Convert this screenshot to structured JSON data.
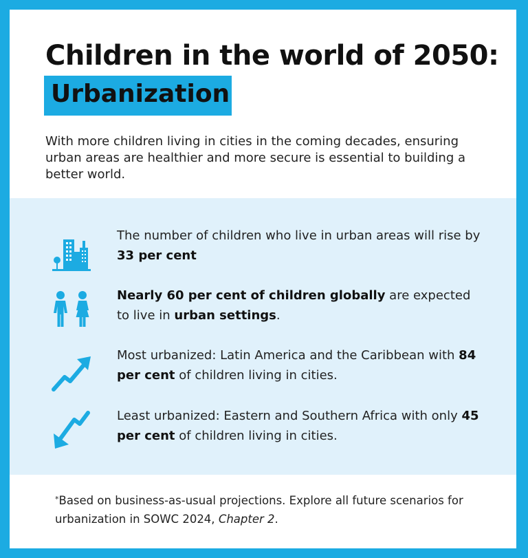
{
  "title": "Children in the world of 2050:",
  "subtitle": "Urbanization",
  "intro": "With more children living in cities in the coming decades, ensuring urban areas are healthier and more secure is essential to building a better world.",
  "colors": {
    "accent": "#1CABE2",
    "panel": "#E0F1FB",
    "text": "#111111"
  },
  "stats": [
    {
      "icon": "city-buildings-icon",
      "parts": [
        {
          "text": "The number of children who live in urban areas will rise by ",
          "bold": false
        },
        {
          "text": "33 per cent",
          "bold": true
        }
      ]
    },
    {
      "icon": "children-icon",
      "parts": [
        {
          "text": "Nearly 60 per cent of children globally",
          "bold": true
        },
        {
          "text": " are expected to live in ",
          "bold": false
        },
        {
          "text": "urban settings",
          "bold": true
        },
        {
          "text": ".",
          "bold": false
        }
      ]
    },
    {
      "icon": "trend-up-icon",
      "parts": [
        {
          "text": "Most urbanized: Latin America and the Caribbean with ",
          "bold": false
        },
        {
          "text": "84 per cent",
          "bold": true
        },
        {
          "text": " of children living in cities.",
          "bold": false
        }
      ]
    },
    {
      "icon": "trend-down-icon",
      "parts": [
        {
          "text": "Least urbanized: Eastern and Southern Africa with only ",
          "bold": false
        },
        {
          "text": "45 per cent",
          "bold": true
        },
        {
          "text": " of children living in cities.",
          "bold": false
        }
      ]
    }
  ],
  "footnote": {
    "marker": "*",
    "text": "Based on business-as-usual projections. Explore all future scenarios for urbanization in SOWC 2024, ",
    "italic": "Chapter 2",
    "end": "."
  }
}
